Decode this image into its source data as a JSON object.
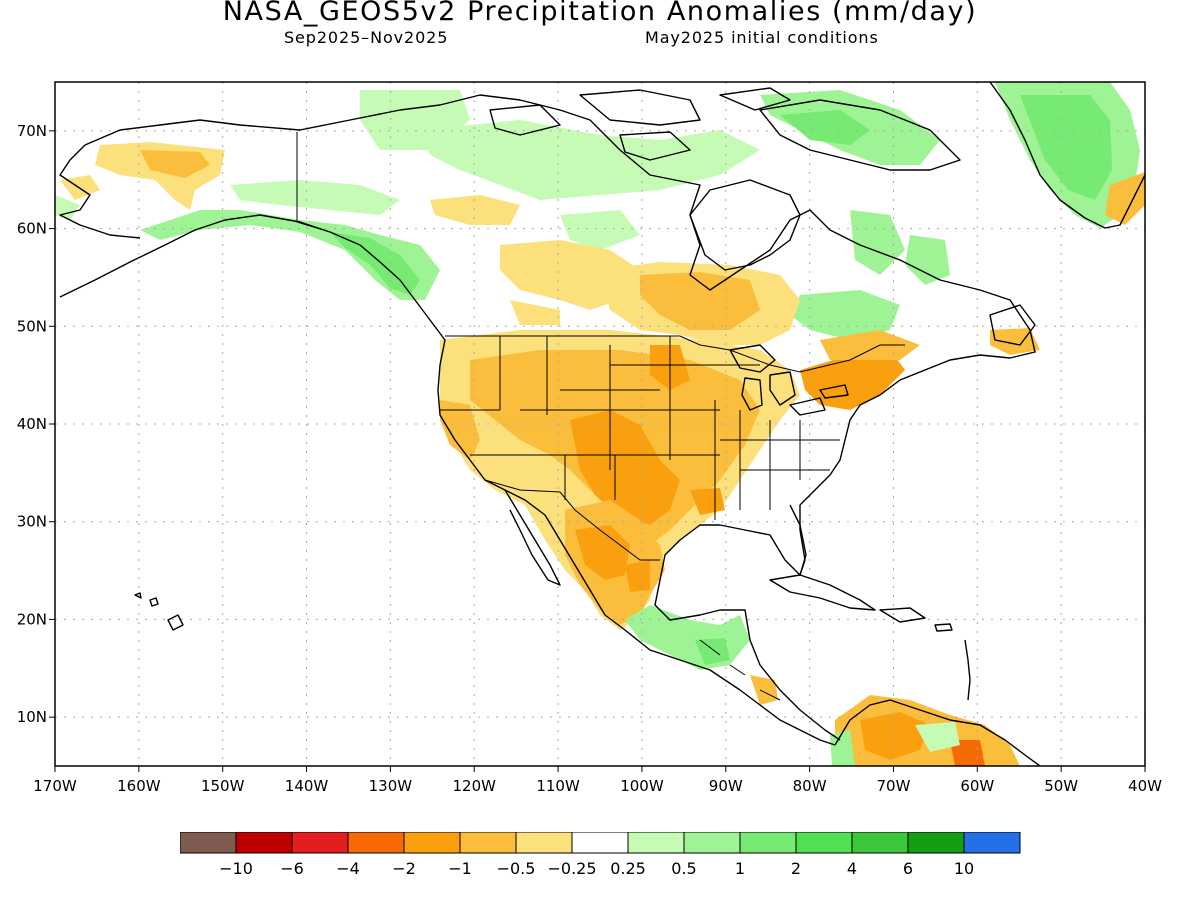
{
  "title": "NASA_GEOS5v2 Precipitation Anomalies (mm/day)",
  "period": "Sep2025–Nov2025",
  "init": "May2025 initial conditions",
  "map": {
    "lon_range": [
      -170,
      -40
    ],
    "lat_range": [
      5,
      75
    ],
    "lon_labels": [
      "170W",
      "160W",
      "150W",
      "140W",
      "130W",
      "120W",
      "110W",
      "100W",
      "90W",
      "80W",
      "70W",
      "60W",
      "50W",
      "40W"
    ],
    "lat_labels": [
      "10N",
      "20N",
      "30N",
      "40N",
      "50N",
      "60N",
      "70N"
    ],
    "grid": true
  },
  "legend": {
    "colors": [
      "#7f5a4e",
      "#be0000",
      "#e21e1e",
      "#f56a04",
      "#faa00f",
      "#fbbe3c",
      "#fce07b",
      "#ffffff",
      "#c6fbb6",
      "#9ef394",
      "#76ea72",
      "#52df52",
      "#3bc63b",
      "#149e14",
      "#2470e6"
    ],
    "labels": [
      "−10",
      "−6",
      "−4",
      "−2",
      "−1",
      "−0.5",
      "−0.25",
      "0.25",
      "0.5",
      "1",
      "2",
      "4",
      "6",
      "10"
    ]
  },
  "anomalies": [
    {
      "region": "Southern Alaska",
      "lon": -148,
      "lat": 65,
      "value": -0.5
    },
    {
      "region": "Alaska Panhandle coast",
      "lon": -132,
      "lat": 57,
      "value": 1
    },
    {
      "region": "Central Canada",
      "lon": -112,
      "lat": 55,
      "value": -0.5
    },
    {
      "region": "Ontario",
      "lon": -92,
      "lat": 51,
      "value": -1
    },
    {
      "region": "Northern Canada / Arctic",
      "lon": -95,
      "lat": 66,
      "value": 0.5
    },
    {
      "region": "Greenland",
      "lon": -45,
      "lat": 67,
      "value": 1
    },
    {
      "region": "Eastern Canada",
      "lon": -70,
      "lat": 52,
      "value": 0.5
    },
    {
      "region": "Western United States",
      "lon": -118,
      "lat": 40,
      "value": -0.5
    },
    {
      "region": "Southern Plains",
      "lon": -100,
      "lat": 33,
      "value": -1
    },
    {
      "region": "Southeastern United States",
      "lon": -87,
      "lat": 35,
      "value": -0.5
    },
    {
      "region": "Northeastern United States",
      "lon": -77,
      "lat": 42,
      "value": -1
    },
    {
      "region": "Mexico",
      "lon": -103,
      "lat": 23,
      "value": -1
    },
    {
      "region": "Southern Mexico",
      "lon": -93,
      "lat": 17,
      "value": 0.5
    },
    {
      "region": "Northern South America",
      "lon": -70,
      "lat": 8,
      "value": -1
    }
  ]
}
